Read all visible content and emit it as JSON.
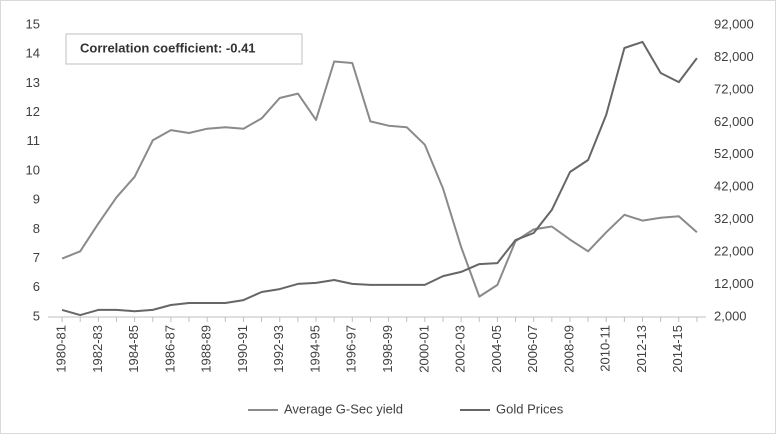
{
  "chart_data": {
    "type": "line",
    "annotation": "Correlation coefficient: -0.41",
    "categories": [
      "1980-81",
      null,
      "1982-83",
      null,
      "1984-85",
      null,
      "1986-87",
      null,
      "1988-89",
      null,
      "1990-91",
      null,
      "1992-93",
      null,
      "1994-95",
      null,
      "1996-97",
      null,
      "1998-99",
      null,
      "2000-01",
      null,
      "2002-03",
      null,
      "2004-05",
      null,
      "2006-07",
      null,
      "2008-09",
      null,
      "2010-11",
      null,
      "2012-13",
      null,
      "2014-15",
      null
    ],
    "series": [
      {
        "name": "Average G-Sec yield",
        "color": "#8a8a8a",
        "values": [
          7.0,
          7.25,
          8.2,
          9.1,
          9.8,
          11.05,
          11.4,
          11.3,
          11.45,
          11.5,
          11.45,
          11.8,
          12.5,
          12.65,
          11.75,
          13.75,
          13.7,
          11.7,
          11.55,
          11.5,
          10.9,
          9.4,
          7.4,
          5.7,
          6.1,
          7.6,
          8.0,
          8.1,
          7.65,
          7.25,
          7.9,
          8.5,
          8.3,
          8.4,
          8.45,
          7.9
        ]
      },
      {
        "name": "Gold Prices",
        "color": "#666666",
        "axis": "y2",
        "values": [
          4200,
          2600,
          4200,
          4200,
          3800,
          4200,
          5700,
          6300,
          6300,
          6300,
          7200,
          9700,
          10600,
          12200,
          12500,
          13400,
          12200,
          11900,
          11900,
          11900,
          11900,
          14600,
          15900,
          18300,
          18600,
          25700,
          27900,
          35000,
          46700,
          50400,
          64300,
          84900,
          86800,
          77200,
          74400,
          81800
        ]
      }
    ],
    "ylim": [
      5,
      15
    ],
    "yticks": [
      5,
      6,
      7,
      8,
      9,
      10,
      11,
      12,
      13,
      14,
      15
    ],
    "y2lim": [
      2000,
      92000
    ],
    "y2ticks": [
      {
        "value": 2000,
        "label": "2,000"
      },
      {
        "value": 12000,
        "label": "12,000"
      },
      {
        "value": 22000,
        "label": "22,000"
      },
      {
        "value": 32000,
        "label": "32,000"
      },
      {
        "value": 42000,
        "label": "42,000"
      },
      {
        "value": 52000,
        "label": "52,000"
      },
      {
        "value": 62000,
        "label": "62,000"
      },
      {
        "value": 72000,
        "label": "72,000"
      },
      {
        "value": 82000,
        "label": "82,000"
      },
      {
        "value": 92000,
        "label": "92,000"
      }
    ],
    "legend": "bottom"
  }
}
